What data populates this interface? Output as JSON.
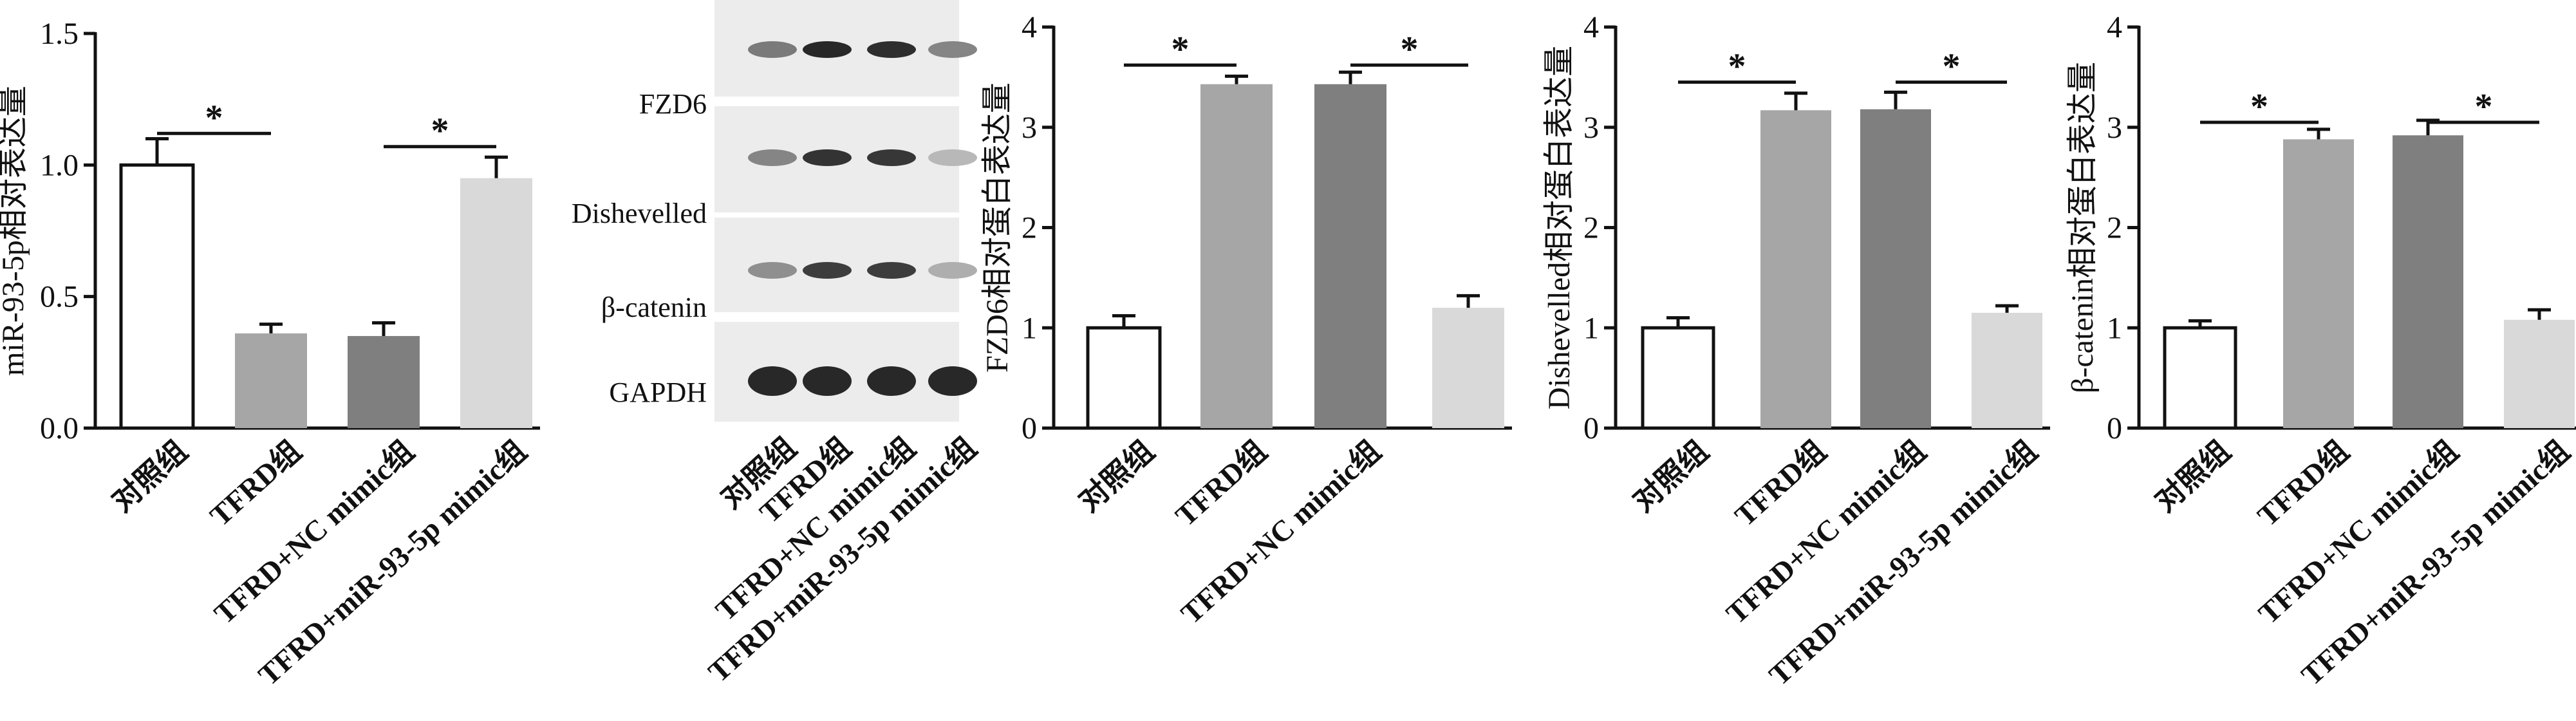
{
  "chart_data": [
    {
      "type": "bar",
      "ylabel": "miR-93-5p相对表达量",
      "ylim": [
        0,
        1.5
      ],
      "yticks": [
        "0.0",
        "0.5",
        "1.0",
        "1.5"
      ],
      "tick_values": [
        0,
        0.5,
        1.0,
        1.5
      ],
      "categories": [
        "对照组",
        "TFRD组",
        "TFRD+NC mimic组",
        "TFRD+miR-93-5p mimic组"
      ],
      "values": [
        1.0,
        0.36,
        0.35,
        0.95
      ],
      "errors": [
        0.1,
        0.035,
        0.05,
        0.08
      ],
      "fills": [
        "#ffffff",
        "#a6a6a6",
        "#7f7f7f",
        "#d9d9d9"
      ],
      "significance": [
        {
          "from": 0,
          "to": 1,
          "y": 1.12,
          "label": "*"
        },
        {
          "from": 2,
          "to": 3,
          "y": 1.07,
          "label": "*"
        }
      ]
    },
    {
      "type": "bar",
      "ylabel": "FZD6相对蛋白表达量",
      "ylim": [
        0,
        4
      ],
      "yticks": [
        "0",
        "1",
        "2",
        "3",
        "4"
      ],
      "tick_values": [
        0,
        1,
        2,
        3,
        4
      ],
      "categories": [
        "对照组",
        "TFRD组",
        "TFRD+NC mimic组",
        ""
      ],
      "values": [
        1.0,
        3.43,
        3.43,
        1.2
      ],
      "errors": [
        0.12,
        0.08,
        0.12,
        0.12
      ],
      "fills": [
        "#ffffff",
        "#a6a6a6",
        "#7f7f7f",
        "#d9d9d9"
      ],
      "significance": [
        {
          "from": 0,
          "to": 1,
          "y": 3.62,
          "label": "*"
        },
        {
          "from": 2,
          "to": 3,
          "y": 3.62,
          "label": "*"
        }
      ]
    },
    {
      "type": "bar",
      "ylabel": "Dishevelled相对蛋白表达量",
      "ylim": [
        0,
        4
      ],
      "yticks": [
        "0",
        "1",
        "2",
        "3",
        "4"
      ],
      "tick_values": [
        0,
        1,
        2,
        3,
        4
      ],
      "categories": [
        "对照组",
        "TFRD组",
        "TFRD+NC mimic组",
        "TFRD+miR-93-5p mimic组"
      ],
      "values": [
        1.0,
        3.17,
        3.18,
        1.15
      ],
      "errors": [
        0.1,
        0.17,
        0.17,
        0.07
      ],
      "fills": [
        "#ffffff",
        "#a6a6a6",
        "#7f7f7f",
        "#d9d9d9"
      ],
      "significance": [
        {
          "from": 0,
          "to": 1,
          "y": 3.45,
          "label": "*"
        },
        {
          "from": 2,
          "to": 3,
          "y": 3.45,
          "label": "*"
        }
      ]
    },
    {
      "type": "bar",
      "ylabel": "β-catenin相对蛋白表达量",
      "ylim": [
        0,
        4
      ],
      "yticks": [
        "0",
        "1",
        "2",
        "3",
        "4"
      ],
      "tick_values": [
        0,
        1,
        2,
        3,
        4
      ],
      "categories": [
        "对照组",
        "TFRD组",
        "TFRD+NC mimic组",
        "TFRD+miR-93-5p mimic组"
      ],
      "values": [
        1.0,
        2.88,
        2.92,
        1.08
      ],
      "errors": [
        0.07,
        0.1,
        0.15,
        0.1
      ],
      "fills": [
        "#ffffff",
        "#a6a6a6",
        "#7f7f7f",
        "#d9d9d9"
      ],
      "significance": [
        {
          "from": 0,
          "to": 1,
          "y": 3.05,
          "label": "*"
        },
        {
          "from": 2,
          "to": 3,
          "y": 3.05,
          "label": "*"
        }
      ]
    }
  ],
  "western_blot": {
    "band_labels": [
      "FZD6",
      "Dishevelled",
      "β-catenin",
      "GAPDH"
    ],
    "lane_labels": [
      "对照组",
      "TFRD组",
      "TFRD+NC mimic组",
      "TFRD+miR-93-5p mimic组"
    ],
    "band_intensity": [
      [
        0.55,
        0.95,
        0.92,
        0.5
      ],
      [
        0.5,
        0.9,
        0.88,
        0.25
      ],
      [
        0.45,
        0.85,
        0.85,
        0.3
      ],
      [
        0.95,
        0.95,
        0.95,
        0.95
      ]
    ]
  }
}
